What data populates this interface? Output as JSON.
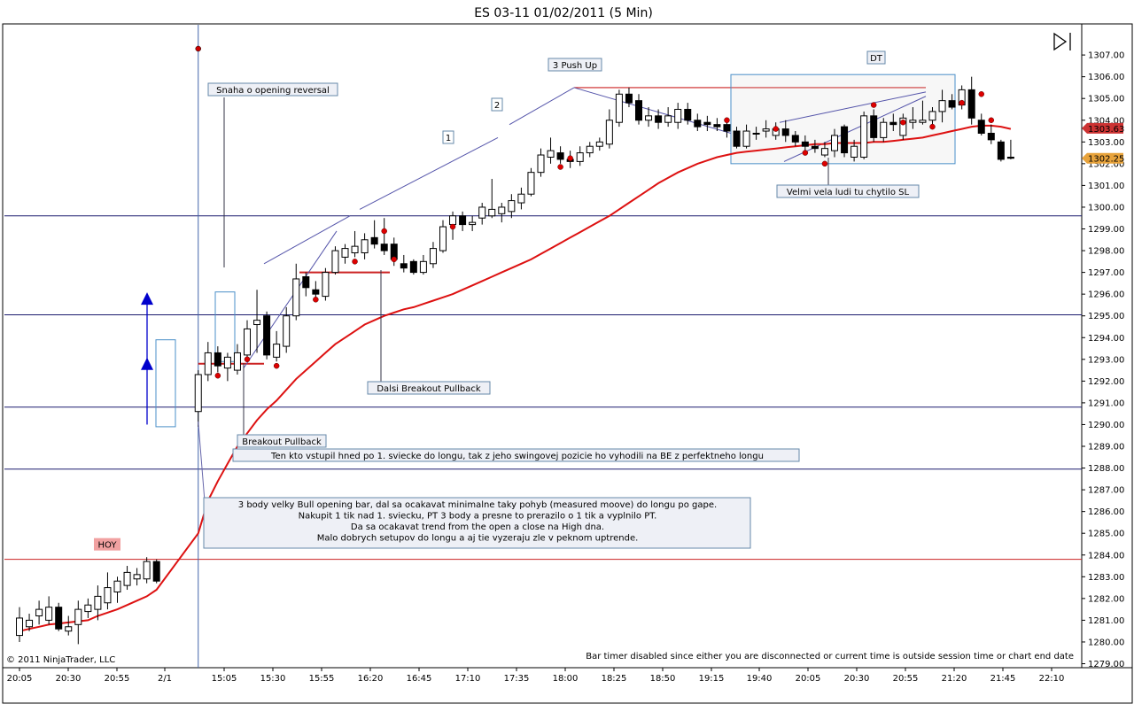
{
  "title": "ES 03-11  01/02/2011 (5 Min)",
  "copyright": "© 2011 NinjaTrader, LLC",
  "bar_timer_note": "Bar timer disabled since either you are disconnected or current time is outside session time or chart end date",
  "colors": {
    "ema": "#dd1111",
    "bull_body": "#ffffff",
    "bear_body": "#000000",
    "hline": "#1a1a6e",
    "red_level": "#cc2222",
    "blue_arrow": "#0000cc",
    "last_price_badge": "#cc3333",
    "second_price_badge": "#e8a33b"
  },
  "chart_data": {
    "type": "candlestick",
    "ylim": [
      1279,
      1307.6
    ],
    "price_ticks": [
      "1307.00",
      "1306.00",
      "1305.00",
      "1304.00",
      "1303.00",
      "1302.00",
      "1301.00",
      "1300.00",
      "1299.00",
      "1298.00",
      "1297.00",
      "1296.00",
      "1295.00",
      "1294.00",
      "1293.00",
      "1292.00",
      "1291.00",
      "1290.00",
      "1289.00",
      "1288.00",
      "1287.00",
      "1286.00",
      "1285.00",
      "1284.00",
      "1283.00",
      "1282.00",
      "1281.00",
      "1280.00",
      "1279.00"
    ],
    "time_ticks": [
      "20:05",
      "20:30",
      "20:55",
      "2/1",
      "15:05",
      "15:30",
      "15:55",
      "16:20",
      "16:45",
      "17:10",
      "17:35",
      "18:00",
      "18:25",
      "18:50",
      "19:15",
      "19:40",
      "20:05",
      "20:30",
      "20:55",
      "21:20",
      "21:45",
      "22:10"
    ],
    "price_badges": [
      {
        "label": "1303.63",
        "price": 1303.63,
        "color": "#cc3333"
      },
      {
        "label": "1302.25",
        "price": 1302.25,
        "color": "#e8a33b"
      }
    ],
    "horizontal_lines": [
      1299.6,
      1295.05,
      1290.8,
      1287.95
    ],
    "hoy_level": 1283.8,
    "hoy_label": "HOY",
    "bars": [
      {
        "o": 1280.3,
        "h": 1281.6,
        "l": 1280.0,
        "c": 1281.1
      },
      {
        "o": 1280.7,
        "h": 1281.3,
        "l": 1280.5,
        "c": 1281.0
      },
      {
        "o": 1281.2,
        "h": 1281.9,
        "l": 1280.8,
        "c": 1281.5
      },
      {
        "o": 1281.0,
        "h": 1282.1,
        "l": 1280.8,
        "c": 1281.6
      },
      {
        "o": 1281.6,
        "h": 1281.8,
        "l": 1280.5,
        "c": 1280.6
      },
      {
        "o": 1280.5,
        "h": 1281.2,
        "l": 1280.3,
        "c": 1280.7
      },
      {
        "o": 1280.8,
        "h": 1281.9,
        "l": 1279.9,
        "c": 1281.5
      },
      {
        "o": 1281.4,
        "h": 1282.0,
        "l": 1281.1,
        "c": 1281.7
      },
      {
        "o": 1281.5,
        "h": 1282.6,
        "l": 1281.0,
        "c": 1282.1
      },
      {
        "o": 1281.8,
        "h": 1283.2,
        "l": 1281.5,
        "c": 1282.5
      },
      {
        "o": 1282.3,
        "h": 1283.0,
        "l": 1281.8,
        "c": 1282.8
      },
      {
        "o": 1282.6,
        "h": 1283.5,
        "l": 1282.4,
        "c": 1283.2
      },
      {
        "o": 1282.9,
        "h": 1283.4,
        "l": 1282.6,
        "c": 1283.1
      },
      {
        "o": 1282.9,
        "h": 1283.9,
        "l": 1282.7,
        "c": 1283.7
      },
      {
        "o": 1283.7,
        "h": 1283.8,
        "l": 1282.7,
        "c": 1282.8
      },
      {
        "o": 1290.6,
        "h": 1292.5,
        "l": 1289.9,
        "c": 1292.3
      },
      {
        "o": 1292.3,
        "h": 1293.8,
        "l": 1292.0,
        "c": 1293.3
      },
      {
        "o": 1293.3,
        "h": 1293.6,
        "l": 1292.4,
        "c": 1292.7
      },
      {
        "o": 1292.6,
        "h": 1293.3,
        "l": 1292.0,
        "c": 1293.1
      },
      {
        "o": 1292.5,
        "h": 1293.7,
        "l": 1292.3,
        "c": 1293.3
      },
      {
        "o": 1293.2,
        "h": 1294.8,
        "l": 1293.0,
        "c": 1294.4
      },
      {
        "o": 1294.6,
        "h": 1296.2,
        "l": 1293.3,
        "c": 1294.8
      },
      {
        "o": 1295.0,
        "h": 1295.2,
        "l": 1293.0,
        "c": 1293.2
      },
      {
        "o": 1293.1,
        "h": 1294.3,
        "l": 1292.9,
        "c": 1293.7
      },
      {
        "o": 1293.6,
        "h": 1295.4,
        "l": 1293.3,
        "c": 1295.0
      },
      {
        "o": 1295.0,
        "h": 1297.4,
        "l": 1294.8,
        "c": 1296.7
      },
      {
        "o": 1296.8,
        "h": 1297.0,
        "l": 1295.9,
        "c": 1296.3
      },
      {
        "o": 1296.2,
        "h": 1296.6,
        "l": 1295.7,
        "c": 1296.0
      },
      {
        "o": 1295.9,
        "h": 1297.2,
        "l": 1295.7,
        "c": 1297.0
      },
      {
        "o": 1297.0,
        "h": 1298.2,
        "l": 1296.9,
        "c": 1298.0
      },
      {
        "o": 1297.7,
        "h": 1298.3,
        "l": 1297.4,
        "c": 1298.1
      },
      {
        "o": 1297.9,
        "h": 1298.9,
        "l": 1297.7,
        "c": 1298.2
      },
      {
        "o": 1297.9,
        "h": 1298.8,
        "l": 1297.6,
        "c": 1298.5
      },
      {
        "o": 1298.6,
        "h": 1299.4,
        "l": 1298.1,
        "c": 1298.3
      },
      {
        "o": 1298.3,
        "h": 1299.5,
        "l": 1297.8,
        "c": 1298.0
      },
      {
        "o": 1298.3,
        "h": 1298.6,
        "l": 1297.3,
        "c": 1297.6
      },
      {
        "o": 1297.4,
        "h": 1297.8,
        "l": 1297.0,
        "c": 1297.2
      },
      {
        "o": 1297.5,
        "h": 1297.6,
        "l": 1296.9,
        "c": 1297.0
      },
      {
        "o": 1297.0,
        "h": 1297.8,
        "l": 1296.9,
        "c": 1297.5
      },
      {
        "o": 1297.4,
        "h": 1298.4,
        "l": 1297.2,
        "c": 1298.1
      },
      {
        "o": 1298.0,
        "h": 1299.4,
        "l": 1297.9,
        "c": 1299.1
      },
      {
        "o": 1299.2,
        "h": 1299.8,
        "l": 1298.5,
        "c": 1299.6
      },
      {
        "o": 1299.6,
        "h": 1299.8,
        "l": 1298.9,
        "c": 1299.2
      },
      {
        "o": 1299.2,
        "h": 1299.6,
        "l": 1298.9,
        "c": 1299.3
      },
      {
        "o": 1299.5,
        "h": 1300.2,
        "l": 1299.2,
        "c": 1300.0
      },
      {
        "o": 1299.6,
        "h": 1301.3,
        "l": 1299.5,
        "c": 1299.9
      },
      {
        "o": 1299.7,
        "h": 1300.2,
        "l": 1299.3,
        "c": 1300.0
      },
      {
        "o": 1299.8,
        "h": 1300.6,
        "l": 1299.5,
        "c": 1300.3
      },
      {
        "o": 1300.2,
        "h": 1300.9,
        "l": 1299.9,
        "c": 1300.6
      },
      {
        "o": 1300.6,
        "h": 1301.8,
        "l": 1300.5,
        "c": 1301.6
      },
      {
        "o": 1301.6,
        "h": 1302.7,
        "l": 1301.4,
        "c": 1302.4
      },
      {
        "o": 1302.3,
        "h": 1303.2,
        "l": 1302.0,
        "c": 1302.6
      },
      {
        "o": 1302.5,
        "h": 1302.8,
        "l": 1302.0,
        "c": 1302.2
      },
      {
        "o": 1302.2,
        "h": 1302.6,
        "l": 1301.8,
        "c": 1302.1
      },
      {
        "o": 1302.1,
        "h": 1302.8,
        "l": 1301.9,
        "c": 1302.5
      },
      {
        "o": 1302.5,
        "h": 1303.0,
        "l": 1302.3,
        "c": 1302.8
      },
      {
        "o": 1302.8,
        "h": 1303.2,
        "l": 1302.6,
        "c": 1303.0
      },
      {
        "o": 1302.9,
        "h": 1304.5,
        "l": 1302.7,
        "c": 1304.0
      },
      {
        "o": 1303.9,
        "h": 1305.4,
        "l": 1303.7,
        "c": 1305.2
      },
      {
        "o": 1305.2,
        "h": 1305.5,
        "l": 1304.6,
        "c": 1304.8
      },
      {
        "o": 1304.9,
        "h": 1305.2,
        "l": 1303.8,
        "c": 1304.0
      },
      {
        "o": 1304.0,
        "h": 1304.6,
        "l": 1303.7,
        "c": 1304.2
      },
      {
        "o": 1304.2,
        "h": 1304.5,
        "l": 1303.6,
        "c": 1303.9
      },
      {
        "o": 1303.9,
        "h": 1304.6,
        "l": 1303.7,
        "c": 1304.2
      },
      {
        "o": 1303.9,
        "h": 1304.8,
        "l": 1303.6,
        "c": 1304.5
      },
      {
        "o": 1304.5,
        "h": 1304.8,
        "l": 1303.8,
        "c": 1304.0
      },
      {
        "o": 1304.0,
        "h": 1304.3,
        "l": 1303.5,
        "c": 1303.7
      },
      {
        "o": 1303.9,
        "h": 1304.2,
        "l": 1303.5,
        "c": 1303.8
      },
      {
        "o": 1303.8,
        "h": 1304.1,
        "l": 1303.5,
        "c": 1303.7
      },
      {
        "o": 1303.8,
        "h": 1304.1,
        "l": 1303.2,
        "c": 1303.5
      },
      {
        "o": 1303.5,
        "h": 1303.7,
        "l": 1302.7,
        "c": 1302.8
      },
      {
        "o": 1302.8,
        "h": 1303.8,
        "l": 1302.7,
        "c": 1303.5
      },
      {
        "o": 1303.4,
        "h": 1303.7,
        "l": 1303.1,
        "c": 1303.4
      },
      {
        "o": 1303.5,
        "h": 1304.0,
        "l": 1303.2,
        "c": 1303.6
      },
      {
        "o": 1303.3,
        "h": 1303.9,
        "l": 1303.1,
        "c": 1303.6
      },
      {
        "o": 1303.6,
        "h": 1304.0,
        "l": 1303.0,
        "c": 1303.3
      },
      {
        "o": 1303.3,
        "h": 1303.5,
        "l": 1302.8,
        "c": 1303.0
      },
      {
        "o": 1303.0,
        "h": 1303.3,
        "l": 1302.6,
        "c": 1302.8
      },
      {
        "o": 1302.8,
        "h": 1303.1,
        "l": 1302.5,
        "c": 1302.7
      },
      {
        "o": 1302.4,
        "h": 1303.0,
        "l": 1302.3,
        "c": 1302.7
      },
      {
        "o": 1302.6,
        "h": 1303.6,
        "l": 1302.3,
        "c": 1303.3
      },
      {
        "o": 1303.7,
        "h": 1303.8,
        "l": 1302.3,
        "c": 1302.5
      },
      {
        "o": 1302.3,
        "h": 1303.1,
        "l": 1302.1,
        "c": 1302.8
      },
      {
        "o": 1302.3,
        "h": 1304.4,
        "l": 1302.2,
        "c": 1304.2
      },
      {
        "o": 1304.2,
        "h": 1304.5,
        "l": 1303.0,
        "c": 1303.2
      },
      {
        "o": 1303.2,
        "h": 1304.1,
        "l": 1303.0,
        "c": 1303.9
      },
      {
        "o": 1303.9,
        "h": 1304.3,
        "l": 1303.5,
        "c": 1303.8
      },
      {
        "o": 1303.3,
        "h": 1304.3,
        "l": 1303.1,
        "c": 1304.1
      },
      {
        "o": 1303.9,
        "h": 1304.6,
        "l": 1303.6,
        "c": 1304.0
      },
      {
        "o": 1303.9,
        "h": 1304.9,
        "l": 1303.8,
        "c": 1304.0
      },
      {
        "o": 1304.0,
        "h": 1304.6,
        "l": 1303.8,
        "c": 1304.4
      },
      {
        "o": 1304.4,
        "h": 1305.4,
        "l": 1303.9,
        "c": 1304.9
      },
      {
        "o": 1304.9,
        "h": 1305.2,
        "l": 1304.5,
        "c": 1304.6
      },
      {
        "o": 1304.7,
        "h": 1305.6,
        "l": 1304.5,
        "c": 1305.4
      },
      {
        "o": 1305.4,
        "h": 1306.0,
        "l": 1303.8,
        "c": 1304.1
      },
      {
        "o": 1304.0,
        "h": 1304.3,
        "l": 1303.3,
        "c": 1303.4
      },
      {
        "o": 1303.4,
        "h": 1303.8,
        "l": 1302.9,
        "c": 1303.1
      },
      {
        "o": 1303.0,
        "h": 1303.1,
        "l": 1302.1,
        "c": 1302.2
      },
      {
        "o": 1302.3,
        "h": 1303.1,
        "l": 1302.2,
        "c": 1302.25
      }
    ],
    "ema": [
      1280.5,
      1280.6,
      1280.7,
      1280.8,
      1280.85,
      1280.9,
      1280.95,
      1281.0,
      1281.2,
      1281.35,
      1281.5,
      1281.7,
      1281.9,
      1282.1,
      1282.4,
      1285.0,
      1286.5,
      1287.4,
      1288.2,
      1289.0,
      1289.6,
      1290.2,
      1290.7,
      1291.1,
      1291.6,
      1292.1,
      1292.5,
      1292.9,
      1293.3,
      1293.7,
      1294.0,
      1294.3,
      1294.6,
      1294.8,
      1295.0,
      1295.15,
      1295.3,
      1295.4,
      1295.55,
      1295.7,
      1295.85,
      1296.0,
      1296.2,
      1296.4,
      1296.6,
      1296.8,
      1297.0,
      1297.2,
      1297.4,
      1297.6,
      1297.85,
      1298.1,
      1298.35,
      1298.6,
      1298.85,
      1299.1,
      1299.35,
      1299.6,
      1299.9,
      1300.2,
      1300.5,
      1300.8,
      1301.1,
      1301.35,
      1301.6,
      1301.8,
      1302.0,
      1302.15,
      1302.3,
      1302.4,
      1302.5,
      1302.55,
      1302.6,
      1302.65,
      1302.7,
      1302.75,
      1302.8,
      1302.85,
      1302.9,
      1302.9,
      1302.95,
      1302.95,
      1302.95,
      1302.95,
      1303.0,
      1303.0,
      1303.05,
      1303.1,
      1303.15,
      1303.2,
      1303.3,
      1303.4,
      1303.5,
      1303.6,
      1303.7,
      1303.75,
      1303.75,
      1303.7,
      1303.6
    ],
    "dots": [
      {
        "bar": 17,
        "price": 1292.25
      },
      {
        "bar": 20,
        "price": 1293.0
      },
      {
        "bar": 23,
        "price": 1292.7
      },
      {
        "bar": 27,
        "price": 1295.75
      },
      {
        "bar": 31,
        "price": 1297.5
      },
      {
        "bar": 34,
        "price": 1298.9
      },
      {
        "bar": 35,
        "price": 1297.6
      },
      {
        "bar": 41,
        "price": 1299.1
      },
      {
        "bar": 52,
        "price": 1301.85
      },
      {
        "bar": 53,
        "price": 1302.25
      },
      {
        "bar": 69,
        "price": 1304.0
      },
      {
        "bar": 74,
        "price": 1303.6
      },
      {
        "bar": 77,
        "price": 1302.5
      },
      {
        "bar": 79,
        "price": 1302.0
      },
      {
        "bar": 84,
        "price": 1304.7
      },
      {
        "bar": 87,
        "price": 1303.9
      },
      {
        "bar": 90,
        "price": 1303.7
      },
      {
        "bar": 93,
        "price": 1304.8
      },
      {
        "bar": 95,
        "price": 1305.2
      },
      {
        "bar": 96,
        "price": 1304.0
      }
    ],
    "annotations": {
      "opening_reversal": "Snaha o opening reversal",
      "breakout_pullback": "Breakout Pullback",
      "dalsi_breakout": "Dalsi Breakout Pullback",
      "push_up": "3 Push Up",
      "one": "1",
      "two": "2",
      "dt": "DT",
      "sl": "Velmi vela ludi tu chytilo SL",
      "swing_note": "Ten kto vstupil hned po 1. sviecke do longu, tak z jeho swingovej pozicie ho vyhodili na BE z perfektneho longu",
      "main_note": [
        "3 body velky Bull opening bar, dal sa ocakavat minimalne taky pohyb (measured moove) do longu po gape.",
        "Nakupit 1 tik nad 1. sviecku, PT 3 body a presne to prerazilo o 1 tik a vyplnilo PT.",
        "Da sa ocakavat trend from the open a close na High dna.",
        "Malo dobrych setupov do longu a aj tie vyzeraju zle v peknom uptrende."
      ]
    }
  }
}
